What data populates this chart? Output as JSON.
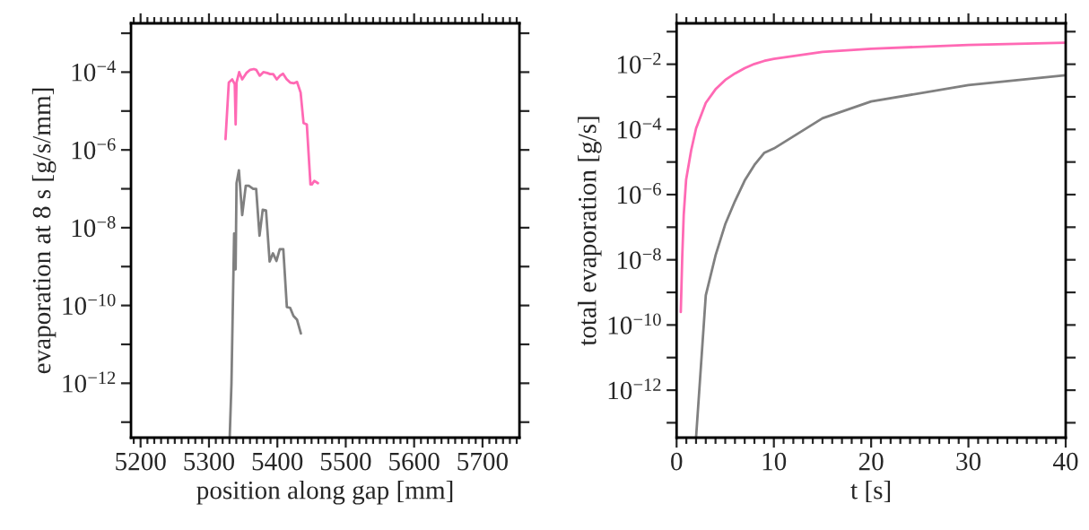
{
  "chart_data": [
    {
      "type": "line",
      "xlabel": "position along gap [mm]",
      "ylabel": "evaporation at 8 s [g/s/mm]",
      "log": "y",
      "xlim": [
        5186,
        5754
      ],
      "ylim": [
        4e-14,
        0.0018
      ],
      "xticks": [
        {
          "value": 5190,
          "label": null
        },
        5200,
        {
          "value": 5210,
          "label": null
        },
        {
          "value": 5220,
          "label": null
        },
        {
          "value": 5230,
          "label": null
        },
        {
          "value": 5240,
          "label": null
        },
        {
          "value": 5250,
          "label": null
        },
        {
          "value": 5260,
          "label": null
        },
        {
          "value": 5270,
          "label": null
        },
        {
          "value": 5280,
          "label": null
        },
        {
          "value": 5290,
          "label": null
        },
        5300,
        {
          "value": 5310,
          "label": null
        },
        {
          "value": 5320,
          "label": null
        },
        {
          "value": 5330,
          "label": null
        },
        {
          "value": 5340,
          "label": null
        },
        {
          "value": 5350,
          "label": null
        },
        {
          "value": 5360,
          "label": null
        },
        {
          "value": 5370,
          "label": null
        },
        {
          "value": 5380,
          "label": null
        },
        {
          "value": 5390,
          "label": null
        },
        5400,
        {
          "value": 5410,
          "label": null
        },
        {
          "value": 5420,
          "label": null
        },
        {
          "value": 5430,
          "label": null
        },
        {
          "value": 5440,
          "label": null
        },
        {
          "value": 5450,
          "label": null
        },
        {
          "value": 5460,
          "label": null
        },
        {
          "value": 5470,
          "label": null
        },
        {
          "value": 5480,
          "label": null
        },
        {
          "value": 5490,
          "label": null
        },
        5500,
        {
          "value": 5510,
          "label": null
        },
        {
          "value": 5520,
          "label": null
        },
        {
          "value": 5530,
          "label": null
        },
        {
          "value": 5540,
          "label": null
        },
        {
          "value": 5550,
          "label": null
        },
        {
          "value": 5560,
          "label": null
        },
        {
          "value": 5570,
          "label": null
        },
        {
          "value": 5580,
          "label": null
        },
        {
          "value": 5590,
          "label": null
        },
        5600,
        {
          "value": 5610,
          "label": null
        },
        {
          "value": 5620,
          "label": null
        },
        {
          "value": 5630,
          "label": null
        },
        {
          "value": 5640,
          "label": null
        },
        {
          "value": 5650,
          "label": null
        },
        {
          "value": 5660,
          "label": null
        },
        {
          "value": 5670,
          "label": null
        },
        {
          "value": 5680,
          "label": null
        },
        {
          "value": 5690,
          "label": null
        },
        5700,
        {
          "value": 5710,
          "label": null
        },
        {
          "value": 5720,
          "label": null
        },
        {
          "value": 5730,
          "label": null
        },
        {
          "value": 5740,
          "label": null
        },
        {
          "value": 5750,
          "label": null
        }
      ],
      "yticks": [
        {
          "value": 0.001,
          "label": null
        },
        {
          "value": 0.0001,
          "label": "10$^{−4}$"
        },
        {
          "value": 1e-05,
          "label": null
        },
        {
          "value": 1e-06,
          "label": "10$^{−6}$"
        },
        {
          "value": 1e-07,
          "label": null
        },
        {
          "value": 1e-08,
          "label": "10$^{−8}$"
        },
        {
          "value": 1e-09,
          "label": null
        },
        {
          "value": 1e-10,
          "label": "10$^{−10}$"
        },
        {
          "value": 1e-11,
          "label": null
        },
        {
          "value": 1e-12,
          "label": "10$^{−12}$"
        },
        {
          "value": 1e-13,
          "label": null
        }
      ],
      "grid": false,
      "legend": false,
      "series": [
        {
          "color": "#ff69b4",
          "x": [
            5324.2,
            5329,
            5334,
            5337.7,
            5339,
            5340.3,
            5344.2,
            5348.6,
            5354.7,
            5360.3,
            5365.6,
            5369,
            5374.3,
            5379.5,
            5385.2,
            5389.5,
            5393.9,
            5399.1,
            5403.9,
            5408.3,
            5413.5,
            5418.7,
            5424.4,
            5428.8,
            5434,
            5438.3,
            5443.1,
            5448.4,
            5450.5,
            5454,
            5459.3
          ],
          "values": [
            1.9e-06,
            5.4e-05,
            6.5e-05,
            4.9e-05,
            4.5e-06,
            5.4e-05,
            0.0001,
            6.5e-05,
            9.5e-05,
            0.000115,
            0.00012,
            0.000115,
            8.1e-05,
            0.0001,
            9.5e-05,
            8.9e-05,
            8.9e-05,
            6.5e-05,
            8.1e-05,
            9.1e-05,
            6.6e-05,
            5.4e-05,
            5.2e-05,
            5.6e-05,
            3e-05,
            4.9e-06,
            4.5e-06,
            1.3e-07,
            1.3e-07,
            1.6e-07,
            1.4e-07
          ]
        },
        {
          "color": "#808080",
          "x": [
            5330.3,
            5332.9,
            5336.8,
            5339,
            5340.3,
            5343.8,
            5348.6,
            5353.8,
            5358.2,
            5364.7,
            5369,
            5373.9,
            5378.6,
            5383.4,
            5388.7,
            5393.5,
            5398.7,
            5403.5,
            5408.7,
            5413.9,
            5418.7,
            5423.5,
            5428.8,
            5434.4
          ],
          "values": [
            4e-14,
            1e-12,
            7.1e-09,
            8.5e-10,
            1.4e-07,
            3e-07,
            2.1e-08,
            1.2e-07,
            1.2e-07,
            1e-07,
            1e-07,
            6.2e-09,
            2.9e-08,
            2.8e-08,
            1.35e-09,
            2.2e-09,
            1.4e-09,
            2.8e-09,
            2.8e-09,
            9.1e-11,
            8.7e-11,
            5.4e-11,
            4.3e-11,
            1.9e-11
          ]
        }
      ]
    },
    {
      "type": "line",
      "xlabel": "t [s]",
      "ylabel": "total evaporation [g/s]",
      "log": "y",
      "xlim": [
        0,
        40
      ],
      "ylim": [
        3.5e-14,
        0.18
      ],
      "xticks": [
        0,
        {
          "value": 1,
          "label": null
        },
        {
          "value": 2,
          "label": null
        },
        {
          "value": 3,
          "label": null
        },
        {
          "value": 4,
          "label": null
        },
        {
          "value": 5,
          "label": null
        },
        {
          "value": 6,
          "label": null
        },
        {
          "value": 7,
          "label": null
        },
        {
          "value": 8,
          "label": null
        },
        {
          "value": 9,
          "label": null
        },
        10,
        {
          "value": 11,
          "label": null
        },
        {
          "value": 12,
          "label": null
        },
        {
          "value": 13,
          "label": null
        },
        {
          "value": 14,
          "label": null
        },
        {
          "value": 15,
          "label": null
        },
        {
          "value": 16,
          "label": null
        },
        {
          "value": 17,
          "label": null
        },
        {
          "value": 18,
          "label": null
        },
        {
          "value": 19,
          "label": null
        },
        20,
        {
          "value": 21,
          "label": null
        },
        {
          "value": 22,
          "label": null
        },
        {
          "value": 23,
          "label": null
        },
        {
          "value": 24,
          "label": null
        },
        {
          "value": 25,
          "label": null
        },
        {
          "value": 26,
          "label": null
        },
        {
          "value": 27,
          "label": null
        },
        {
          "value": 28,
          "label": null
        },
        {
          "value": 29,
          "label": null
        },
        30,
        {
          "value": 31,
          "label": null
        },
        {
          "value": 32,
          "label": null
        },
        {
          "value": 33,
          "label": null
        },
        {
          "value": 34,
          "label": null
        },
        {
          "value": 35,
          "label": null
        },
        {
          "value": 36,
          "label": null
        },
        {
          "value": 37,
          "label": null
        },
        {
          "value": 38,
          "label": null
        },
        {
          "value": 39,
          "label": null
        },
        40
      ],
      "yticks": [
        {
          "value": 0.1,
          "label": null
        },
        {
          "value": 0.01,
          "label": "10$^{−2}$"
        },
        {
          "value": 0.001,
          "label": null
        },
        {
          "value": 0.0001,
          "label": "10$^{−4}$"
        },
        {
          "value": 1e-05,
          "label": null
        },
        {
          "value": 1e-06,
          "label": "10$^{−6}$"
        },
        {
          "value": 1e-07,
          "label": null
        },
        {
          "value": 1e-08,
          "label": "10$^{−8}$"
        },
        {
          "value": 1e-09,
          "label": null
        },
        {
          "value": 1e-10,
          "label": "10$^{−10}$"
        },
        {
          "value": 1e-11,
          "label": null
        },
        {
          "value": 1e-12,
          "label": "10$^{−12}$"
        },
        {
          "value": 1e-13,
          "label": null
        }
      ],
      "grid": false,
      "legend": false,
      "series": [
        {
          "color": "#ff69b4",
          "x": [
            0.43,
            0.58,
            0.73,
            0.98,
            1.5,
            2,
            3,
            4,
            5,
            6,
            7,
            8,
            9,
            10,
            15,
            20,
            30,
            40
          ],
          "values": [
            2.5e-10,
            1.2e-08,
            2.3e-07,
            2.9e-06,
            2.3e-05,
            0.000107,
            0.00065,
            0.0017,
            0.0033,
            0.0052,
            0.0076,
            0.0102,
            0.0126,
            0.0147,
            0.024,
            0.03,
            0.039,
            0.046
          ]
        },
        {
          "color": "#808080",
          "x": [
            2,
            3,
            4,
            5,
            6,
            7,
            8,
            9,
            10,
            15,
            20,
            30,
            40
          ],
          "values": [
            3.5e-14,
            8.1e-10,
            1.35e-08,
            1.23e-07,
            6.3e-07,
            2.7e-06,
            8.1e-06,
            1.9e-05,
            2.6e-05,
            0.00022,
            0.00072,
            0.0023,
            0.0046
          ]
        }
      ]
    }
  ]
}
